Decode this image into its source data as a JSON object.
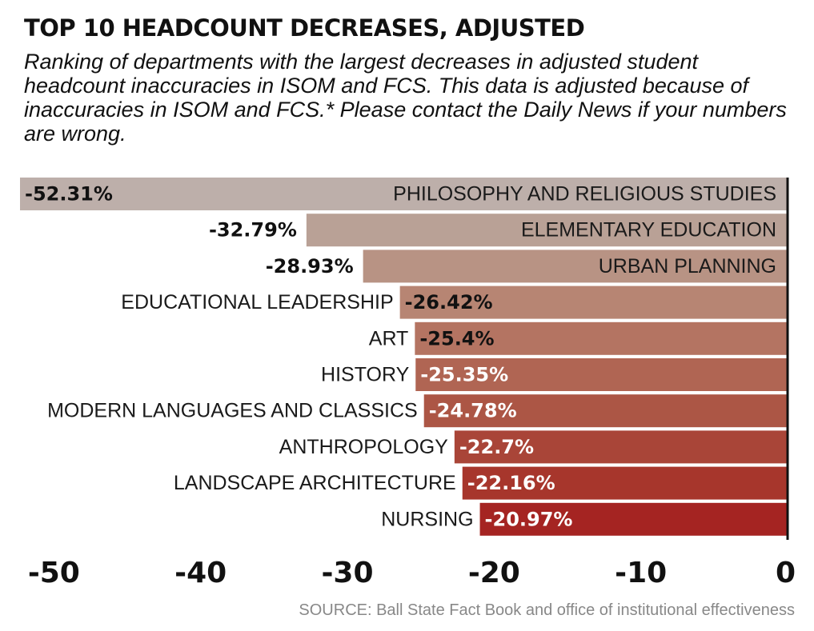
{
  "title": "TOP 10 HEADCOUNT DECREASES, ADJUSTED",
  "subtitle": "Ranking of departments with the largest decreases in adjusted student headcount inaccuracies in ISOM and FCS. This data is adjusted because of inaccuracies in ISOM and FCS.* Please contact the Daily News if your numbers are wrong.",
  "source": "SOURCE: Ball State Fact Book and office of institutional effectiveness",
  "chart_data": {
    "type": "bar",
    "orientation": "horizontal",
    "categories": [
      "PHILOSOPHY AND RELIGIOUS STUDIES",
      "ELEMENTARY EDUCATION",
      "URBAN PLANNING",
      "EDUCATIONAL LEADERSHIP",
      "ART",
      "HISTORY",
      "MODERN LANGUAGES AND CLASSICS",
      "ANTHROPOLOGY",
      "LANDSCAPE ARCHITECTURE",
      "NURSING"
    ],
    "values": [
      -52.31,
      -32.79,
      -28.93,
      -26.42,
      -25.4,
      -25.35,
      -24.78,
      -22.7,
      -22.16,
      -20.97
    ],
    "value_labels": [
      "-52.31%",
      "-32.79%",
      "-28.93%",
      "-26.42%",
      "-25.4%",
      "-25.35%",
      "-24.78%",
      "-22.7%",
      "-22.16%",
      "-20.97%"
    ],
    "colors": [
      "#bdafaa",
      "#b9a196",
      "#b89384",
      "#b78573",
      "#b47462",
      "#b06553",
      "#ac5645",
      "#a94538",
      "#a7362c",
      "#a52422"
    ],
    "xlim": [
      -52.31,
      0
    ],
    "xticks": [
      -50,
      -40,
      -30,
      -20,
      -10,
      0
    ],
    "xtick_labels": [
      "-50",
      "-40",
      "-30",
      "-20",
      "-10",
      "0"
    ],
    "grid": false,
    "legend": "none"
  }
}
